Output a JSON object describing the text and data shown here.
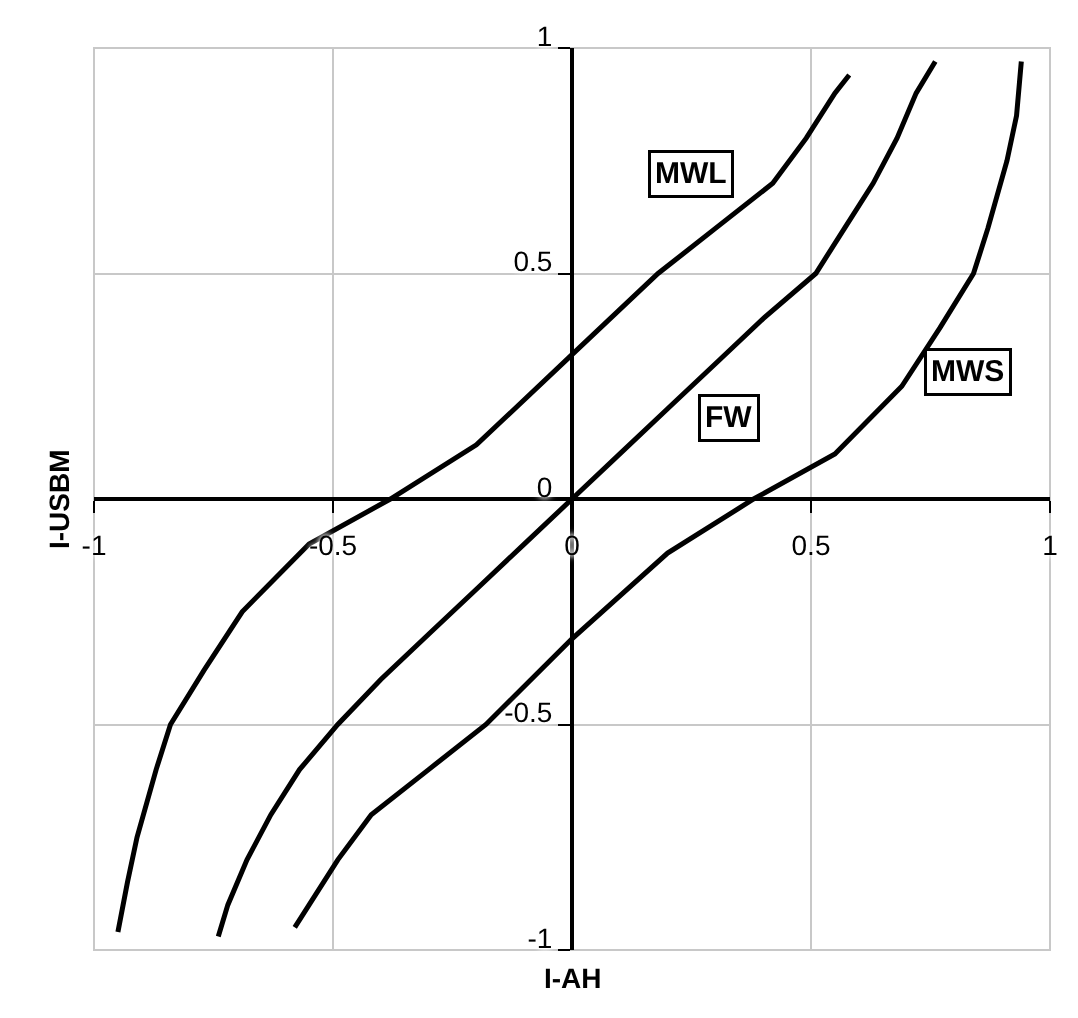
{
  "chart_data": {
    "type": "line",
    "xlabel": "I-AH",
    "ylabel": "I-USBM",
    "xlim": [
      -1,
      1
    ],
    "ylim": [
      -1,
      1
    ],
    "xticks": [
      -1,
      -0.5,
      0,
      0.5,
      1
    ],
    "yticks": [
      -1,
      -0.5,
      0,
      0.5,
      1
    ],
    "grid": true,
    "marker": "none",
    "line_style": "solid",
    "series": [
      {
        "color": "#000000",
        "x": [
          -0.95,
          -0.93,
          -0.91,
          -0.87,
          -0.84,
          -0.77,
          -0.69,
          -0.55,
          -0.38,
          -0.2,
          0,
          0.18,
          0.3,
          0.42,
          0.49,
          0.55,
          0.58
        ],
        "values": [
          -0.96,
          -0.85,
          -0.75,
          -0.6,
          -0.5,
          -0.38,
          -0.25,
          -0.1,
          0,
          0.12,
          0.32,
          0.5,
          0.6,
          0.7,
          0.8,
          0.9,
          0.94
        ]
      },
      {
        "color": "#000000",
        "x": [
          -0.74,
          -0.72,
          -0.68,
          -0.63,
          -0.57,
          -0.49,
          -0.4,
          -0.3,
          -0.2,
          -0.1,
          0,
          0.1,
          0.2,
          0.3,
          0.4,
          0.51,
          0.57,
          0.63,
          0.68,
          0.72,
          0.76
        ],
        "values": [
          -0.97,
          -0.9,
          -0.8,
          -0.7,
          -0.6,
          -0.5,
          -0.4,
          -0.3,
          -0.2,
          -0.1,
          0,
          0.1,
          0.2,
          0.3,
          0.4,
          0.5,
          0.6,
          0.7,
          0.8,
          0.9,
          0.97
        ]
      },
      {
        "color": "#000000",
        "x": [
          -0.58,
          -0.55,
          -0.49,
          -0.42,
          -0.3,
          -0.18,
          0,
          0.2,
          0.38,
          0.55,
          0.69,
          0.77,
          0.84,
          0.87,
          0.91,
          0.93,
          0.94
        ],
        "values": [
          -0.95,
          -0.9,
          -0.8,
          -0.7,
          -0.6,
          -0.5,
          -0.31,
          -0.12,
          0,
          0.1,
          0.25,
          0.38,
          0.5,
          0.6,
          0.75,
          0.85,
          0.97
        ]
      }
    ],
    "annotations": [
      {
        "text": "MWL",
        "x": 0.25,
        "y": 0.72
      },
      {
        "text": "FW",
        "x": 0.33,
        "y": 0.18
      },
      {
        "text": "MWS",
        "x": 0.83,
        "y": 0.28
      }
    ]
  }
}
